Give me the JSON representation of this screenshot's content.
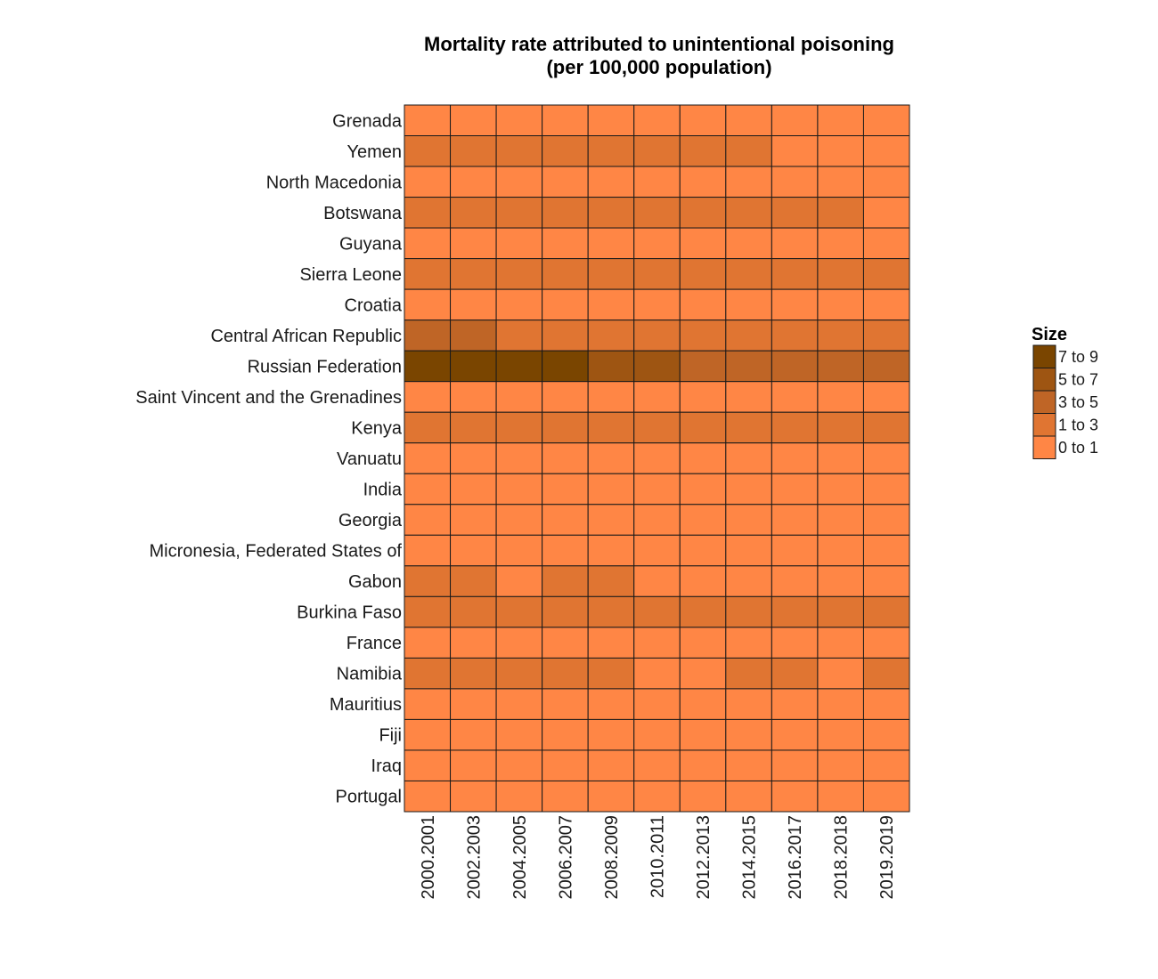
{
  "chart_data": {
    "type": "heatmap",
    "title_line1": "Mortality rate attributed to unintentional poisoning",
    "title_line2": "(per 100,000 population)",
    "xlabel": "",
    "ylabel": "",
    "x_categories": [
      "2000.2001",
      "2002.2003",
      "2004.2005",
      "2006.2007",
      "2008.2009",
      "2010.2011",
      "2012.2013",
      "2014.2015",
      "2016.2017",
      "2018.2018",
      "2019.2019"
    ],
    "y_categories": [
      "Grenada",
      "Yemen",
      "North Macedonia",
      "Botswana",
      "Guyana",
      "Sierra Leone",
      "Croatia",
      "Central African Republic",
      "Russian Federation",
      "Saint Vincent and the Grenadines",
      "Kenya",
      "Vanuatu",
      "India",
      "Georgia",
      "Micronesia, Federated States of",
      "Gabon",
      "Burkina Faso",
      "France",
      "Namibia",
      "Mauritius",
      "Fiji",
      "Iraq",
      "Portugal"
    ],
    "bins": [
      {
        "label": "7 to 9",
        "color": "#7a4500"
      },
      {
        "label": "5 to 7",
        "color": "#9e5512"
      },
      {
        "label": "3 to 5",
        "color": "#bf6526"
      },
      {
        "label": "1 to 3",
        "color": "#e07532"
      },
      {
        "label": "0 to 1",
        "color": "#ff8645"
      }
    ],
    "cell_bins": [
      [
        4,
        4,
        4,
        4,
        4,
        4,
        4,
        4,
        4,
        4,
        4
      ],
      [
        3,
        3,
        3,
        3,
        3,
        3,
        3,
        3,
        4,
        4,
        4
      ],
      [
        4,
        4,
        4,
        4,
        4,
        4,
        4,
        4,
        4,
        4,
        4
      ],
      [
        3,
        3,
        3,
        3,
        3,
        3,
        3,
        3,
        3,
        3,
        4
      ],
      [
        4,
        4,
        4,
        4,
        4,
        4,
        4,
        4,
        4,
        4,
        4
      ],
      [
        3,
        3,
        3,
        3,
        3,
        3,
        3,
        3,
        3,
        3,
        3
      ],
      [
        4,
        4,
        4,
        4,
        4,
        4,
        4,
        4,
        4,
        4,
        4
      ],
      [
        2,
        2,
        3,
        3,
        3,
        3,
        3,
        3,
        3,
        3,
        3
      ],
      [
        0,
        0,
        0,
        0,
        1,
        1,
        2,
        2,
        2,
        2,
        2
      ],
      [
        4,
        4,
        4,
        4,
        4,
        4,
        4,
        4,
        4,
        4,
        4
      ],
      [
        3,
        3,
        3,
        3,
        3,
        3,
        3,
        3,
        3,
        3,
        3
      ],
      [
        4,
        4,
        4,
        4,
        4,
        4,
        4,
        4,
        4,
        4,
        4
      ],
      [
        4,
        4,
        4,
        4,
        4,
        4,
        4,
        4,
        4,
        4,
        4
      ],
      [
        4,
        4,
        4,
        4,
        4,
        4,
        4,
        4,
        4,
        4,
        4
      ],
      [
        4,
        4,
        4,
        4,
        4,
        4,
        4,
        4,
        4,
        4,
        4
      ],
      [
        3,
        3,
        4,
        3,
        3,
        4,
        4,
        4,
        4,
        4,
        4
      ],
      [
        3,
        3,
        3,
        3,
        3,
        3,
        3,
        3,
        3,
        3,
        3
      ],
      [
        4,
        4,
        4,
        4,
        4,
        4,
        4,
        4,
        4,
        4,
        4
      ],
      [
        3,
        3,
        3,
        3,
        3,
        4,
        4,
        3,
        3,
        4,
        3
      ],
      [
        4,
        4,
        4,
        4,
        4,
        4,
        4,
        4,
        4,
        4,
        4
      ],
      [
        4,
        4,
        4,
        4,
        4,
        4,
        4,
        4,
        4,
        4,
        4
      ],
      [
        4,
        4,
        4,
        4,
        4,
        4,
        4,
        4,
        4,
        4,
        4
      ],
      [
        4,
        4,
        4,
        4,
        4,
        4,
        4,
        4,
        4,
        4,
        4
      ]
    ],
    "legend": {
      "title": "Size",
      "placement": "right"
    },
    "grid": false
  }
}
